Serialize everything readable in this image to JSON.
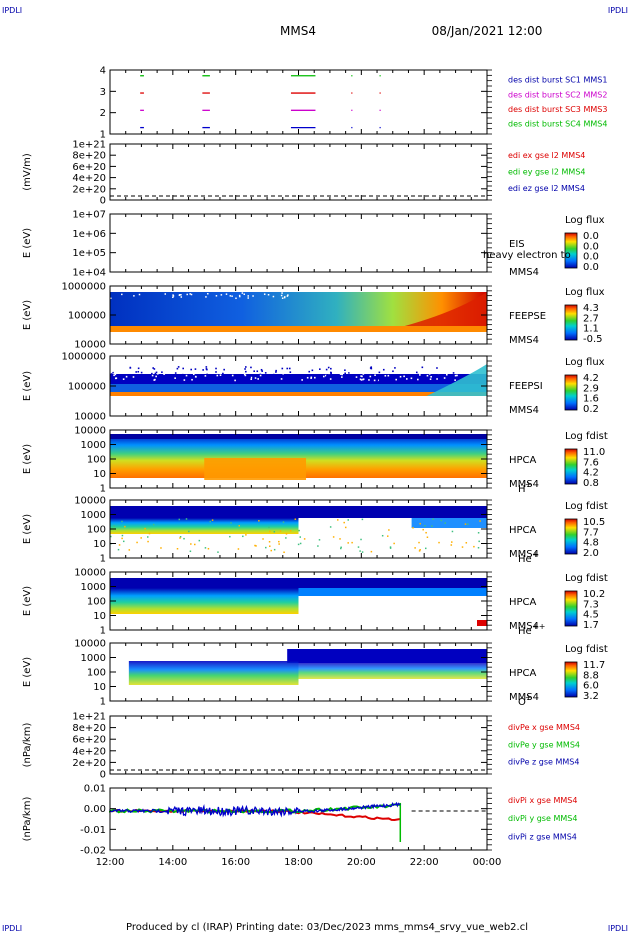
{
  "header": {
    "corner_tl": "IPDLI",
    "corner_tr": "IPDLI",
    "corner_bl": "IPDLI",
    "corner_br": "IPDLI",
    "spacecraft": "MMS4",
    "date": "08/Jan/2021 12:00"
  },
  "footer": {
    "text": "Produced by cl (IRAP)   Printing date: 03/Dec/2023   mms_mms4_srvy_vue_web2.cl"
  },
  "colors": {
    "blue": "#0000cc",
    "red": "#dd0000",
    "magenta": "#cc00cc",
    "green": "#00bb00",
    "label_blue": "#0000aa"
  },
  "chart_data": {
    "type": "multi-panel time series",
    "x_ticks": [
      "12:00",
      "14:00",
      "16:00",
      "18:00",
      "20:00",
      "22:00",
      "00:00"
    ],
    "panels": [
      {
        "id": "burst",
        "yticks": [
          "4",
          "3",
          "2",
          "1"
        ],
        "legend": [
          {
            "text": "des dist burst SC1 MMS1",
            "color": "#0000aa"
          },
          {
            "text": "des dist burst SC2 MMS2",
            "color": "#cc00cc"
          },
          {
            "text": "des dist burst SC3 MMS3",
            "color": "#dd0000"
          },
          {
            "text": "des dist burst SC4 MMS4",
            "color": "#00bb00"
          }
        ]
      },
      {
        "id": "edi",
        "ylabel": "(mV/m)",
        "yticks": [
          "1e+21",
          "8e+20",
          "6e+20",
          "4e+20",
          "2e+20",
          "0"
        ],
        "legend": [
          {
            "text": "edi ex gse l2 MMS4",
            "color": "#dd0000"
          },
          {
            "text": "edi ey gse l2 MMS4",
            "color": "#00bb00"
          },
          {
            "text": "edi ez gse l2 MMS4",
            "color": "#0000aa"
          }
        ]
      },
      {
        "id": "eis",
        "ylabel": "E (eV)",
        "yticks": [
          "1e+07",
          "1e+06",
          "1e+05",
          "1e+04"
        ],
        "name_lines": [
          "EIS",
          "MMS4"
        ],
        "overlay": "heavy electron to",
        "cbar_title": "Log flux",
        "cbar_ticks": [
          "0.0",
          "0.0",
          "0.0",
          "0.0"
        ]
      },
      {
        "id": "feepse",
        "ylabel": "E (eV)",
        "yticks": [
          "1000000",
          "100000",
          "10000"
        ],
        "name_lines": [
          "FEEPSE",
          "MMS4"
        ],
        "cbar_title": "Log flux",
        "cbar_ticks": [
          "4.3",
          "2.7",
          "1.1",
          "-0.5"
        ]
      },
      {
        "id": "feepsi",
        "ylabel": "E (eV)",
        "yticks": [
          "1000000",
          "100000",
          "10000"
        ],
        "name_lines": [
          "FEEPSI",
          "MMS4"
        ],
        "cbar_title": "Log flux",
        "cbar_ticks": [
          "4.2",
          "2.9",
          "1.6",
          "0.2"
        ]
      },
      {
        "id": "hpca_h",
        "ylabel": "E (eV)",
        "yticks": [
          "10000",
          "1000",
          "100",
          "10",
          "1"
        ],
        "name_lines": [
          "HPCA",
          "MMS4"
        ],
        "species": "H",
        "species_sup": "+",
        "cbar_title": "Log fdist",
        "cbar_ticks": [
          "11.0",
          "7.6",
          "4.2",
          "0.8"
        ]
      },
      {
        "id": "hpca_he",
        "ylabel": "E (eV)",
        "yticks": [
          "10000",
          "1000",
          "100",
          "10",
          "1"
        ],
        "name_lines": [
          "HPCA",
          "MMS4"
        ],
        "species": "He",
        "species_sup": "+",
        "cbar_title": "Log fdist",
        "cbar_ticks": [
          "10.5",
          "7.7",
          "4.8",
          "2.0"
        ]
      },
      {
        "id": "hpca_he2",
        "ylabel": "E (eV)",
        "yticks": [
          "10000",
          "1000",
          "100",
          "10",
          "1"
        ],
        "name_lines": [
          "HPCA",
          "MMS4"
        ],
        "species": "He",
        "species_sup": "++",
        "cbar_title": "Log fdist",
        "cbar_ticks": [
          "10.2",
          "7.3",
          "4.5",
          "1.7"
        ]
      },
      {
        "id": "hpca_o",
        "ylabel": "E (eV)",
        "yticks": [
          "10000",
          "1000",
          "100",
          "10",
          "1"
        ],
        "name_lines": [
          "HPCA",
          "MMS4"
        ],
        "species": "O",
        "species_sup": "+",
        "cbar_title": "Log fdist",
        "cbar_ticks": [
          "11.7",
          "8.8",
          "6.0",
          "3.2"
        ]
      },
      {
        "id": "divpe",
        "ylabel": "(nPa/km)",
        "yticks": [
          "1e+21",
          "8e+20",
          "6e+20",
          "4e+20",
          "2e+20",
          "0"
        ],
        "legend": [
          {
            "text": "divPe x gse MMS4",
            "color": "#dd0000"
          },
          {
            "text": "divPe y gse MMS4",
            "color": "#00bb00"
          },
          {
            "text": "divPe z gse MMS4",
            "color": "#0000aa"
          }
        ]
      },
      {
        "id": "divpi",
        "ylabel": "(nPa/km)",
        "yticks": [
          "0.01",
          "0.00",
          "-0.01",
          "-0.02"
        ],
        "legend": [
          {
            "text": "divPi x gse MMS4",
            "color": "#dd0000"
          },
          {
            "text": "divPi y gse MMS4",
            "color": "#00bb00"
          },
          {
            "text": "divPi z gse MMS4",
            "color": "#0000aa"
          }
        ]
      }
    ]
  }
}
